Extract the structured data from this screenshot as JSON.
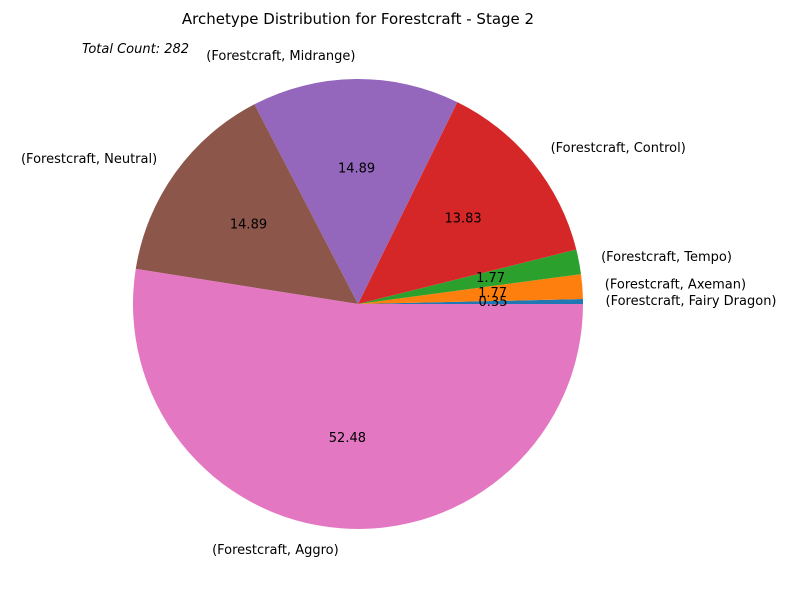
{
  "chart_data": {
    "type": "pie",
    "title": "Archetype Distribution for Forestcraft - Stage 2",
    "annotation": "Total Count: 282",
    "slices": [
      {
        "label": "(Forestcraft, Fairy Dragon)",
        "value": 0.35,
        "pct_text": "0.35",
        "color": "#1f77b4"
      },
      {
        "label": "(Forestcraft, Axeman)",
        "value": 1.77,
        "pct_text": "1.77",
        "color": "#ff7f0e"
      },
      {
        "label": "(Forestcraft, Tempo)",
        "value": 1.77,
        "pct_text": "1.77",
        "color": "#2ca02c"
      },
      {
        "label": "(Forestcraft, Control)",
        "value": 13.83,
        "pct_text": "13.83",
        "color": "#d62728"
      },
      {
        "label": "(Forestcraft, Midrange)",
        "value": 14.89,
        "pct_text": "14.89",
        "color": "#9467bd"
      },
      {
        "label": "(Forestcraft, Neutral)",
        "value": 14.89,
        "pct_text": "14.89",
        "color": "#8c564b"
      },
      {
        "label": "(Forestcraft, Aggro)",
        "value": 52.48,
        "pct_text": "52.48",
        "color": "#e377c2"
      }
    ]
  }
}
